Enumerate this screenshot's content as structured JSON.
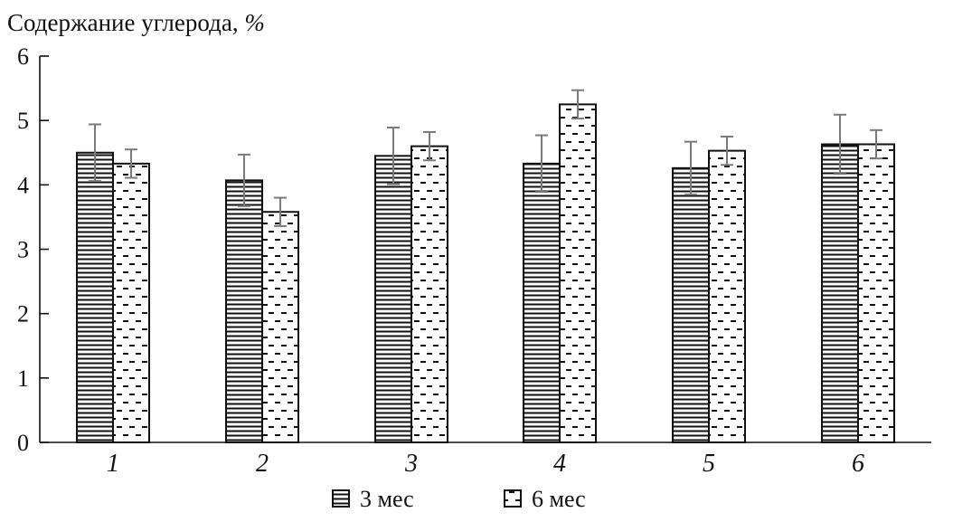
{
  "chart_data": {
    "type": "bar",
    "title": "",
    "ylabel_main": "Содержание углерода, ",
    "ylabel_unit": "%",
    "xlabel": "",
    "categories": [
      "1",
      "2",
      "3",
      "4",
      "5",
      "6"
    ],
    "ylim": [
      0,
      6
    ],
    "yticks": [
      "0",
      "1",
      "2",
      "3",
      "4",
      "5",
      "6"
    ],
    "grid": false,
    "legend_position": "bottom-center",
    "series": [
      {
        "name": "3 мес",
        "values": [
          4.5,
          4.07,
          4.45,
          4.33,
          4.26,
          4.63
        ],
        "errors": [
          0.44,
          0.4,
          0.44,
          0.44,
          0.41,
          0.46
        ],
        "pattern": "horizontal-lines"
      },
      {
        "name": "6 мес",
        "values": [
          4.33,
          3.58,
          4.6,
          5.25,
          4.53,
          4.63
        ],
        "errors": [
          0.22,
          0.22,
          0.22,
          0.22,
          0.22,
          0.22
        ],
        "pattern": "dashes"
      }
    ]
  },
  "colors": {
    "ink": "#111111",
    "errorbar": "#7a7a7a",
    "background": "#ffffff"
  }
}
